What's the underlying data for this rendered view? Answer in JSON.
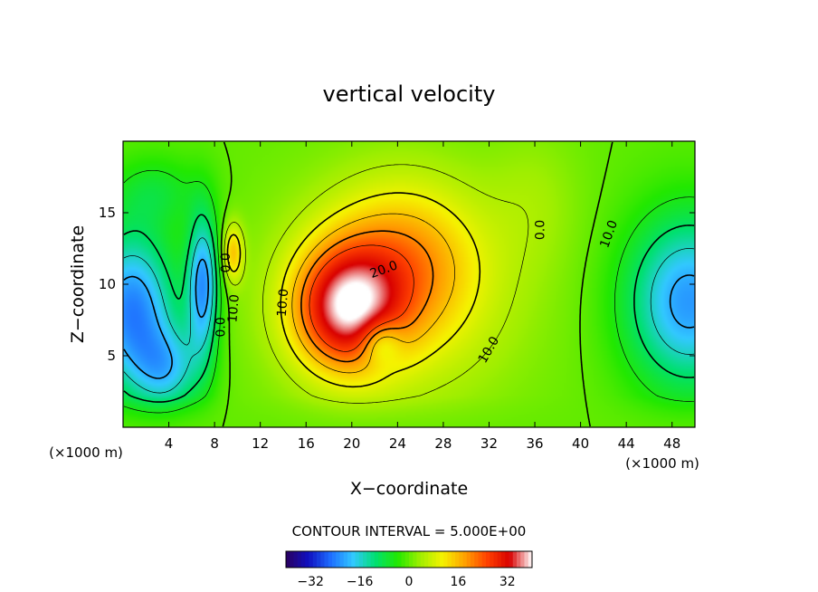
{
  "chart_data": {
    "type": "heatmap",
    "title": "vertical velocity",
    "xlabel": "X−coordinate",
    "ylabel": "Z−coordinate",
    "x_unit_label": "(×1000 m)",
    "z_unit_label": "(×1000 m)",
    "xlim": [
      0,
      50
    ],
    "ylim": [
      0,
      20
    ],
    "x_ticks": [
      4,
      8,
      12,
      16,
      20,
      24,
      28,
      32,
      36,
      40,
      44,
      48
    ],
    "y_ticks": [
      5,
      10,
      15
    ],
    "contour_interval_text": "CONTOUR INTERVAL = 5.000E+00",
    "contour_labels": [
      {
        "text": "20.0",
        "x": 22.8,
        "z": 11.0,
        "rotate": -20
      },
      {
        "text": "10.0",
        "x": 14.0,
        "z": 8.7,
        "rotate": -85
      },
      {
        "text": "10.0",
        "x": 32.0,
        "z": 5.4,
        "rotate": -60
      },
      {
        "text": "10.0",
        "x": 42.5,
        "z": 13.5,
        "rotate": -70
      },
      {
        "text": "0.0",
        "x": 36.5,
        "z": 13.8,
        "rotate": -90
      },
      {
        "text": "0.0",
        "x": 9.0,
        "z": 11.5,
        "rotate": -90
      },
      {
        "text": "10.0",
        "x": 9.7,
        "z": 8.3,
        "rotate": -85
      },
      {
        "text": "0.0",
        "x": 8.6,
        "z": 7.0,
        "rotate": -90
      }
    ],
    "field_features": [
      {
        "sign": "positive",
        "x": 19.5,
        "z": 8.5,
        "peak": 32
      },
      {
        "sign": "positive",
        "x": 24.0,
        "z": 12.0,
        "peak": 20
      },
      {
        "sign": "positive",
        "x": 9.5,
        "z": 12.0,
        "peak": 15
      },
      {
        "sign": "negative",
        "x": 1.0,
        "z": 8.0,
        "peak": -28
      },
      {
        "sign": "negative",
        "x": 7.0,
        "z": 10.0,
        "peak": -32
      },
      {
        "sign": "negative",
        "x": 49.0,
        "z": 9.0,
        "peak": -28
      }
    ],
    "colorbar": {
      "range": [
        -40,
        40
      ],
      "ticks": [
        -32,
        -16,
        0,
        16,
        32
      ],
      "tick_labels": [
        "−32",
        "−16",
        "0",
        "16",
        "32"
      ]
    },
    "colormap": [
      "#2a0060",
      "#1010c0",
      "#1e6eff",
      "#32c8ff",
      "#00e070",
      "#22e800",
      "#a0ee00",
      "#f5f200",
      "#ffa000",
      "#ff4000",
      "#d80000",
      "#ffffff"
    ]
  }
}
